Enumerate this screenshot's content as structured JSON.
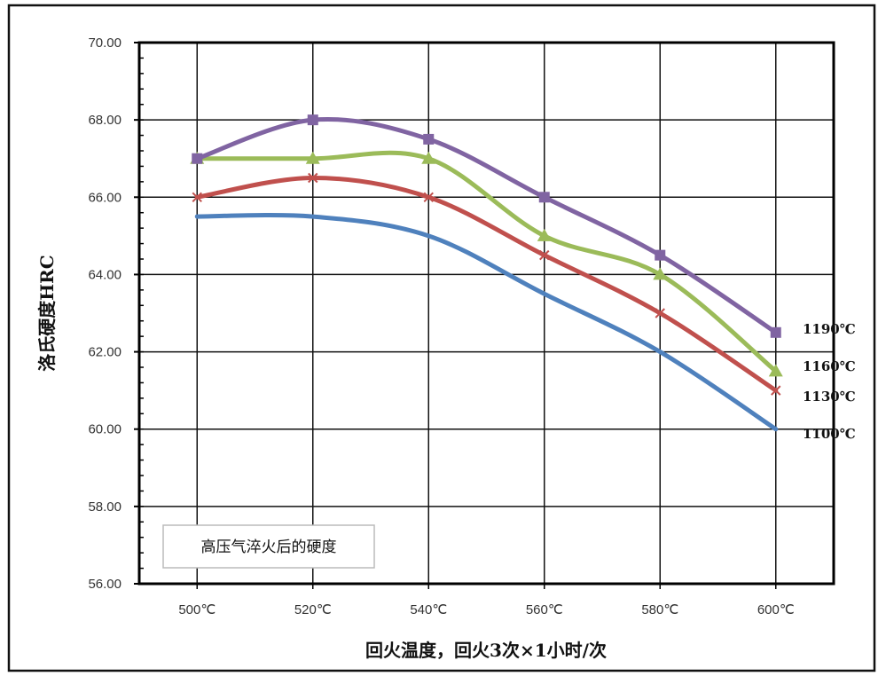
{
  "chart_data": {
    "type": "line",
    "title": "",
    "xlabel": "回火温度，回火3次×1小时/次",
    "ylabel": "洛氏硬度HRC",
    "categories": [
      "500℃",
      "520℃",
      "540℃",
      "560℃",
      "580℃",
      "600℃"
    ],
    "ylim": [
      56,
      70
    ],
    "yticks": [
      "56.00",
      "58.00",
      "60.00",
      "62.00",
      "64.00",
      "66.00",
      "68.00",
      "70.00"
    ],
    "grid": true,
    "annotation": "高压气淬火后的硬度",
    "series": [
      {
        "name": "1190℃",
        "color": "#8064a2",
        "marker": "square",
        "values": [
          67.0,
          68.0,
          67.5,
          66.0,
          64.5,
          62.5
        ]
      },
      {
        "name": "1160℃",
        "color": "#9bbb59",
        "marker": "triangle",
        "values": [
          67.0,
          67.0,
          67.0,
          65.0,
          64.0,
          61.5
        ]
      },
      {
        "name": "1130℃",
        "color": "#c0504d",
        "marker": "x",
        "values": [
          66.0,
          66.5,
          66.0,
          64.5,
          63.0,
          61.0
        ]
      },
      {
        "name": "1100℃",
        "color": "#4f81bd",
        "marker": "none",
        "values": [
          65.5,
          65.5,
          65.0,
          63.5,
          62.0,
          60.0
        ]
      }
    ]
  }
}
